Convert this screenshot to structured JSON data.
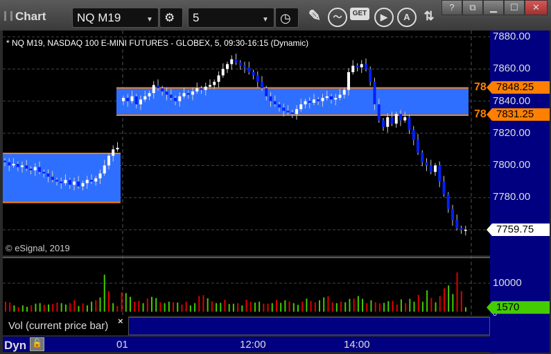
{
  "window": {
    "title": "Chart",
    "help": "?",
    "buttons": [
      "?",
      "link",
      "minimize",
      "maximize",
      "close"
    ]
  },
  "toolbar": {
    "symbol": "NQ M19",
    "interval": "5",
    "tools": [
      "gear-icon",
      "clock-icon",
      "pencil-icon",
      "studies-icon",
      "get-icon",
      "play-icon",
      "alert-icon",
      "swap-icon"
    ],
    "get_label": "GET",
    "alert_label": "A"
  },
  "chart": {
    "header": "* NQ M19, NASDAQ 100 E-MINI FUTURES - GLOBEX, 5, 09:30-16:15 (Dynamic)",
    "copyright": "© eSignal, 2019",
    "price_ticks": [
      "7880.00",
      "7860.00",
      "7840.00",
      "7820.00",
      "7800.00",
      "7780.00"
    ],
    "levels": [
      {
        "value": "7848.25",
        "label": "78"
      },
      {
        "value": "7831.25",
        "label": "78"
      }
    ],
    "last_price": "7759.75",
    "level_color": "#ff8000",
    "zone_color": "#2f6fff",
    "up_color": "#ffffff",
    "down_color": "#0020ff"
  },
  "prior_zone": {
    "high": 7807.5,
    "low": 7777
  },
  "candles_prior": [
    7802,
    7800,
    7801,
    7799,
    7800,
    7798,
    7797,
    7799,
    7796,
    7795,
    7793,
    7791,
    7790,
    7789,
    7791,
    7788,
    7790,
    7787,
    7789,
    7791,
    7790,
    7792,
    7795,
    7800,
    7806,
    7810,
    7811
  ],
  "candles_day": [
    7842,
    7840,
    7843,
    7838,
    7841,
    7843,
    7845,
    7850,
    7848,
    7846,
    7844,
    7842,
    7840,
    7843,
    7845,
    7844,
    7846,
    7848,
    7847,
    7849,
    7850,
    7852,
    7856,
    7860,
    7863,
    7866,
    7864,
    7862,
    7861,
    7858,
    7856,
    7852,
    7848,
    7843,
    7840,
    7838,
    7836,
    7834,
    7833,
    7832,
    7835,
    7838,
    7840,
    7839,
    7841,
    7840,
    7842,
    7843,
    7841,
    7842,
    7844,
    7847,
    7858,
    7862,
    7861,
    7863,
    7860,
    7852,
    7838,
    7828,
    7824,
    7830,
    7826,
    7832,
    7828,
    7830,
    7822,
    7816,
    7808,
    7802,
    7800,
    7796,
    7800,
    7790,
    7782,
    7773,
    7766,
    7761,
    7760,
    7760
  ],
  "volume": {
    "tick": "10000",
    "zero": "0",
    "current": "1570",
    "current_color": "#44cc00",
    "legend": "Vol (current price bar)"
  },
  "volumes": [
    3500,
    3200,
    2200,
    1600,
    2200,
    1700,
    2200,
    2800,
    3000,
    2400,
    2500,
    2700,
    3200,
    3000,
    2500,
    3000,
    4000,
    2000,
    2900,
    2200,
    3500,
    4000,
    5000,
    13000,
    7200,
    3000,
    2000,
    6800,
    6500,
    5200,
    3500,
    3800,
    3000,
    4600,
    5200,
    4800,
    3300,
    3000,
    3500,
    3300,
    3200,
    2500,
    3500,
    2200,
    3000,
    5500,
    5800,
    4700,
    3600,
    3000,
    3100,
    4200,
    2700,
    2800,
    3000,
    2200,
    4200,
    3500,
    3200,
    3500,
    2800,
    2800,
    3000,
    4100,
    3100,
    4000,
    3600,
    3000,
    2400,
    3500,
    4600,
    3800,
    3300,
    4000,
    5000,
    5500,
    3300,
    3000,
    3500,
    3300,
    4500,
    4600,
    5500,
    4500,
    3000,
    4000,
    3300,
    2900,
    3100,
    3700,
    3800,
    2500,
    4300,
    3000,
    4500,
    3500,
    5900,
    3500,
    7500,
    4800,
    3300,
    5500,
    8200,
    9200,
    6200,
    13800,
    7200,
    1570
  ],
  "time_axis": {
    "labels": [
      "01",
      "12:00",
      "14:00"
    ],
    "mode": "Dyn"
  }
}
